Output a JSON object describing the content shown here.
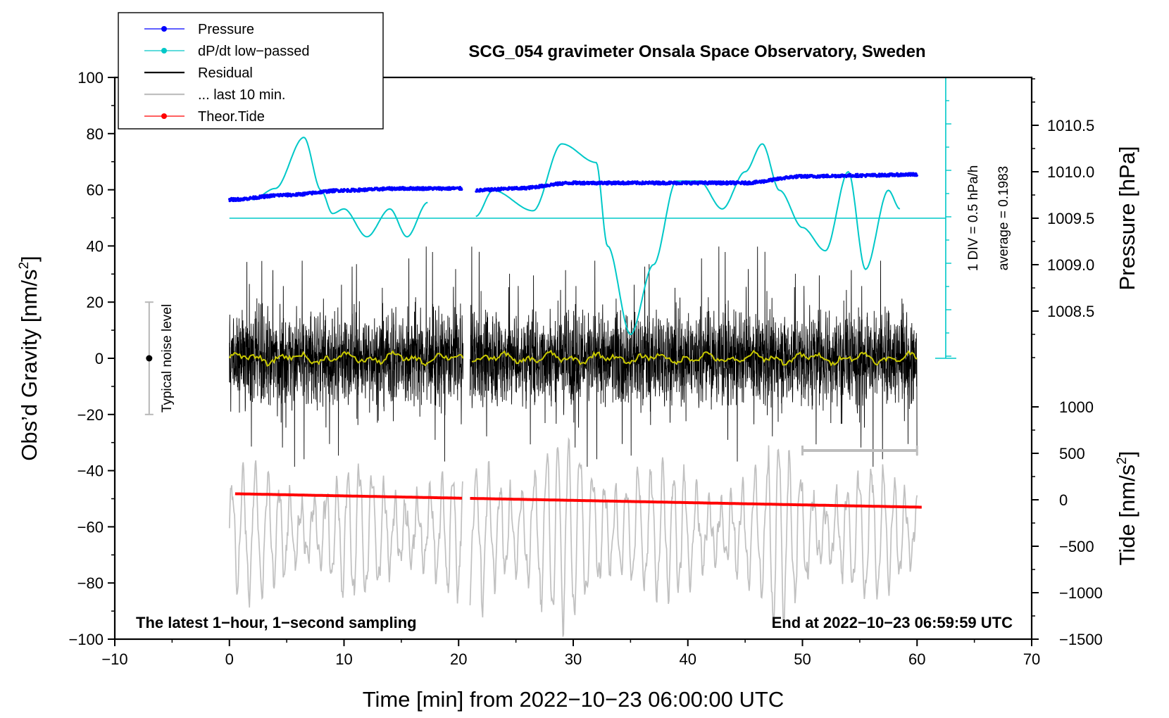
{
  "chart_data": {
    "type": "line",
    "title": "SCG_054 gravimeter Onsala Space Observatory, Sweden",
    "xlabel": "Time [min] from 2022−10−23 06:00:00 UTC",
    "ylabel_left": "Obs’d Gravity [nm/s²]",
    "ylabel_right_pressure": "Pressure [hPa]",
    "ylabel_right_tide": "Tide [nm/s²]",
    "xlim": [
      -10,
      70
    ],
    "ylim": [
      -100,
      100
    ],
    "x_ticks": [
      "−10",
      "0",
      "10",
      "20",
      "30",
      "40",
      "50",
      "60",
      "70"
    ],
    "y_ticks": [
      "100",
      "80",
      "60",
      "40",
      "20",
      "0",
      "−20",
      "−40",
      "−60",
      "−80",
      "−100"
    ],
    "pressure_axis": {
      "ticks": [
        "1010.5",
        "1010.0",
        "1009.5",
        "1009.0",
        "1008.5"
      ],
      "values": [
        1010.5,
        1010.0,
        1009.5,
        1009.0,
        1008.5
      ],
      "range": [
        1008.0,
        1011.0
      ]
    },
    "tide_axis": {
      "ticks": [
        "1000",
        "500",
        "0",
        "−500",
        "−1000",
        "−1500"
      ],
      "values": [
        1000,
        500,
        0,
        -500,
        -1000,
        -1500
      ],
      "range": [
        -1500,
        1500
      ]
    },
    "legend": [
      {
        "label": "Pressure",
        "color": "#0000ff",
        "style": "line-dot"
      },
      {
        "label": "dP/dt low−passed",
        "color": "#00c8c8",
        "style": "line-dot"
      },
      {
        "label": "Residual",
        "color": "#000000",
        "style": "line"
      },
      {
        "label": "... last 10 min.",
        "color": "#c0c0c0",
        "style": "line"
      },
      {
        "label": "Theor.Tide",
        "color": "#ff0000",
        "style": "line-dot"
      }
    ],
    "data_gap_minutes": [
      20.4,
      21.0
    ],
    "series": [
      {
        "name": "Pressure",
        "unit": "hPa",
        "color": "#0000ff",
        "x": [
          0,
          5,
          10,
          15,
          20,
          21.5,
          25,
          30,
          35,
          40,
          45,
          50,
          55,
          60
        ],
        "values": [
          1009.7,
          1009.75,
          1009.8,
          1009.82,
          1009.82,
          1009.8,
          1009.82,
          1009.88,
          1009.88,
          1009.88,
          1009.88,
          1009.95,
          1009.96,
          1009.97
        ]
      },
      {
        "name": "dP/dt low−passed",
        "unit": "hPa/h",
        "color": "#00c8c8",
        "x": [
          2,
          4,
          6.5,
          8,
          9,
          10,
          12,
          14,
          15.5,
          17.3,
          21.5,
          23,
          26.5,
          29,
          32,
          33,
          35,
          37,
          39,
          41,
          43,
          45,
          46.5,
          48,
          50,
          52,
          54,
          55.5,
          57.5,
          58.5
        ],
        "values": [
          0.2,
          0.32,
          0.87,
          0.3,
          0.05,
          0.1,
          -0.2,
          0.1,
          -0.2,
          0.17,
          0.02,
          0.3,
          0.08,
          0.8,
          0.6,
          -0.3,
          -1.25,
          -0.5,
          0.4,
          0.4,
          0.1,
          0.5,
          0.8,
          0.3,
          -0.1,
          -0.35,
          0.5,
          -0.55,
          0.3,
          0.1
        ]
      },
      {
        "name": "Residual",
        "unit": "nm/s²",
        "color": "#000000",
        "x_range": [
          0,
          60
        ],
        "amplitude_typical": 20,
        "amplitude_max": 40
      },
      {
        "name": "Residual smoothed",
        "unit": "nm/s²",
        "color": "#c8c800",
        "x_range": [
          0,
          60
        ],
        "mean": 0,
        "amplitude": 2
      },
      {
        "name": "... last 10 min.",
        "unit": "nm/s²",
        "color": "#c0c0c0",
        "x_range": [
          0,
          60
        ],
        "center": -62,
        "amplitude": 22
      },
      {
        "name": "Theor.Tide",
        "unit": "nm/s²",
        "color": "#ff0000",
        "x": [
          0.5,
          60.5
        ],
        "values": [
          65,
          -80
        ]
      }
    ],
    "dpdt_baseline_hpa": 1009.5,
    "dpdt_scale": {
      "label": "1 DIV = 0.5 hPa/h",
      "average_label": "average = 0.1983",
      "average": 0.1983
    },
    "noise_indicator": {
      "label": "Typical noise level",
      "center": 0,
      "half_range": 20
    },
    "last10_range_minutes": [
      50,
      60
    ],
    "notes": {
      "bottom_left": "The latest 1−hour, 1−second sampling",
      "bottom_right": "End at 2022−10−23 06:59:59 UTC"
    }
  }
}
